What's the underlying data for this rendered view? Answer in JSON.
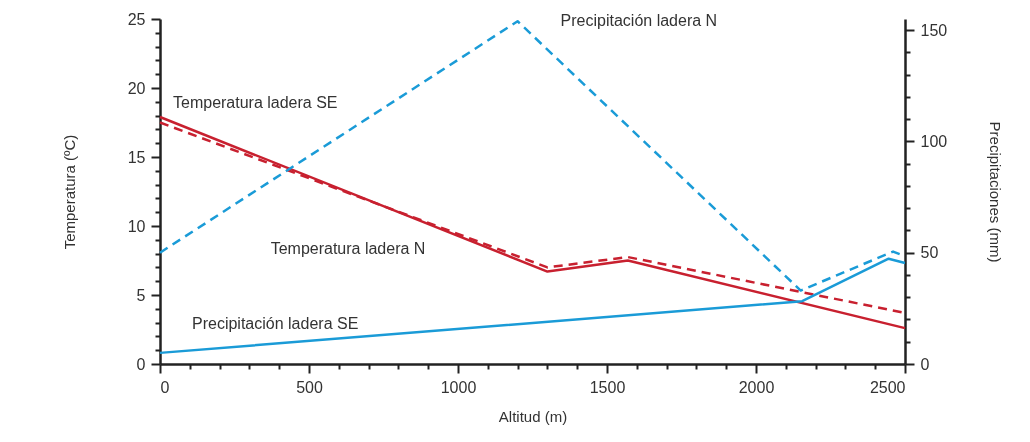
{
  "chart_data": {
    "type": "line",
    "xlabel": "Altitud (m)",
    "ylabel": "Temperatura (ºC)",
    "y2label": "Precipitaciones (mm)",
    "xlim": [
      0,
      2500
    ],
    "ylim": [
      0,
      25
    ],
    "y2lim": [
      0,
      155
    ],
    "xticks": [
      0,
      {
        "value": 100,
        "label": null
      },
      {
        "value": 200,
        "label": null
      },
      {
        "value": 300,
        "label": null
      },
      {
        "value": 400,
        "label": null
      },
      500,
      {
        "value": 600,
        "label": null
      },
      {
        "value": 700,
        "label": null
      },
      {
        "value": 800,
        "label": null
      },
      {
        "value": 900,
        "label": null
      },
      1000,
      {
        "value": 1100,
        "label": null
      },
      {
        "value": 1200,
        "label": null
      },
      {
        "value": 1300,
        "label": null
      },
      {
        "value": 1400,
        "label": null
      },
      1500,
      {
        "value": 1600,
        "label": null
      },
      {
        "value": 1700,
        "label": null
      },
      {
        "value": 1800,
        "label": null
      },
      {
        "value": 1900,
        "label": null
      },
      2000,
      {
        "value": 2100,
        "label": null
      },
      {
        "value": 2200,
        "label": null
      },
      {
        "value": 2300,
        "label": null
      },
      {
        "value": 2400,
        "label": null
      },
      2500
    ],
    "yticks": [
      0,
      {
        "value": 1,
        "label": null
      },
      {
        "value": 2,
        "label": null
      },
      {
        "value": 3,
        "label": null
      },
      {
        "value": 4,
        "label": null
      },
      5,
      {
        "value": 6,
        "label": null
      },
      {
        "value": 7,
        "label": null
      },
      {
        "value": 8,
        "label": null
      },
      {
        "value": 9,
        "label": null
      },
      10,
      {
        "value": 11,
        "label": null
      },
      {
        "value": 12,
        "label": null
      },
      {
        "value": 13,
        "label": null
      },
      {
        "value": 14,
        "label": null
      },
      15,
      {
        "value": 16,
        "label": null
      },
      {
        "value": 17,
        "label": null
      },
      {
        "value": 18,
        "label": null
      },
      {
        "value": 19,
        "label": null
      },
      20,
      {
        "value": 21,
        "label": null
      },
      {
        "value": 22,
        "label": null
      },
      {
        "value": 23,
        "label": null
      },
      {
        "value": 24,
        "label": null
      },
      25
    ],
    "y2ticks": [
      0,
      {
        "value": 10,
        "label": null
      },
      {
        "value": 20,
        "label": null
      },
      {
        "value": 30,
        "label": null
      },
      {
        "value": 40,
        "label": null
      },
      50,
      {
        "value": 60,
        "label": null
      },
      {
        "value": 70,
        "label": null
      },
      {
        "value": 80,
        "label": null
      },
      {
        "value": 90,
        "label": null
      },
      100,
      {
        "value": 110,
        "label": null
      },
      {
        "value": 120,
        "label": null
      },
      {
        "value": 130,
        "label": null
      },
      {
        "value": 140,
        "label": null
      },
      150
    ],
    "grid": false,
    "marker": "none",
    "series": [
      {
        "name": "Temperatura ladera SE",
        "color": "#c8202f",
        "line_style": "solid",
        "x": [
          0,
          1300,
          1570,
          2500
        ],
        "values": [
          17.9,
          6.7,
          7.5,
          2.6
        ]
      },
      {
        "name": "Temperatura ladera N",
        "color": "#c8202f",
        "line_style": "dashed",
        "x": [
          0,
          1300,
          1570,
          2500
        ],
        "values": [
          17.5,
          7.0,
          7.75,
          3.7
        ]
      },
      {
        "name": "Precipitación ladera N",
        "color": "#1a9bd7",
        "line_style": "dashed",
        "axis": "y2",
        "x": [
          0,
          1200,
          2150,
          2460,
          2500
        ],
        "values": [
          50,
          154,
          33,
          50.5,
          48.5
        ]
      },
      {
        "name": "Precipitación ladera SE",
        "color": "#1a9bd7",
        "line_style": "solid",
        "axis": "y2",
        "x": [
          0,
          2155,
          2445,
          2500
        ],
        "values": [
          5,
          28.2,
          47.3,
          45.4
        ]
      }
    ]
  }
}
